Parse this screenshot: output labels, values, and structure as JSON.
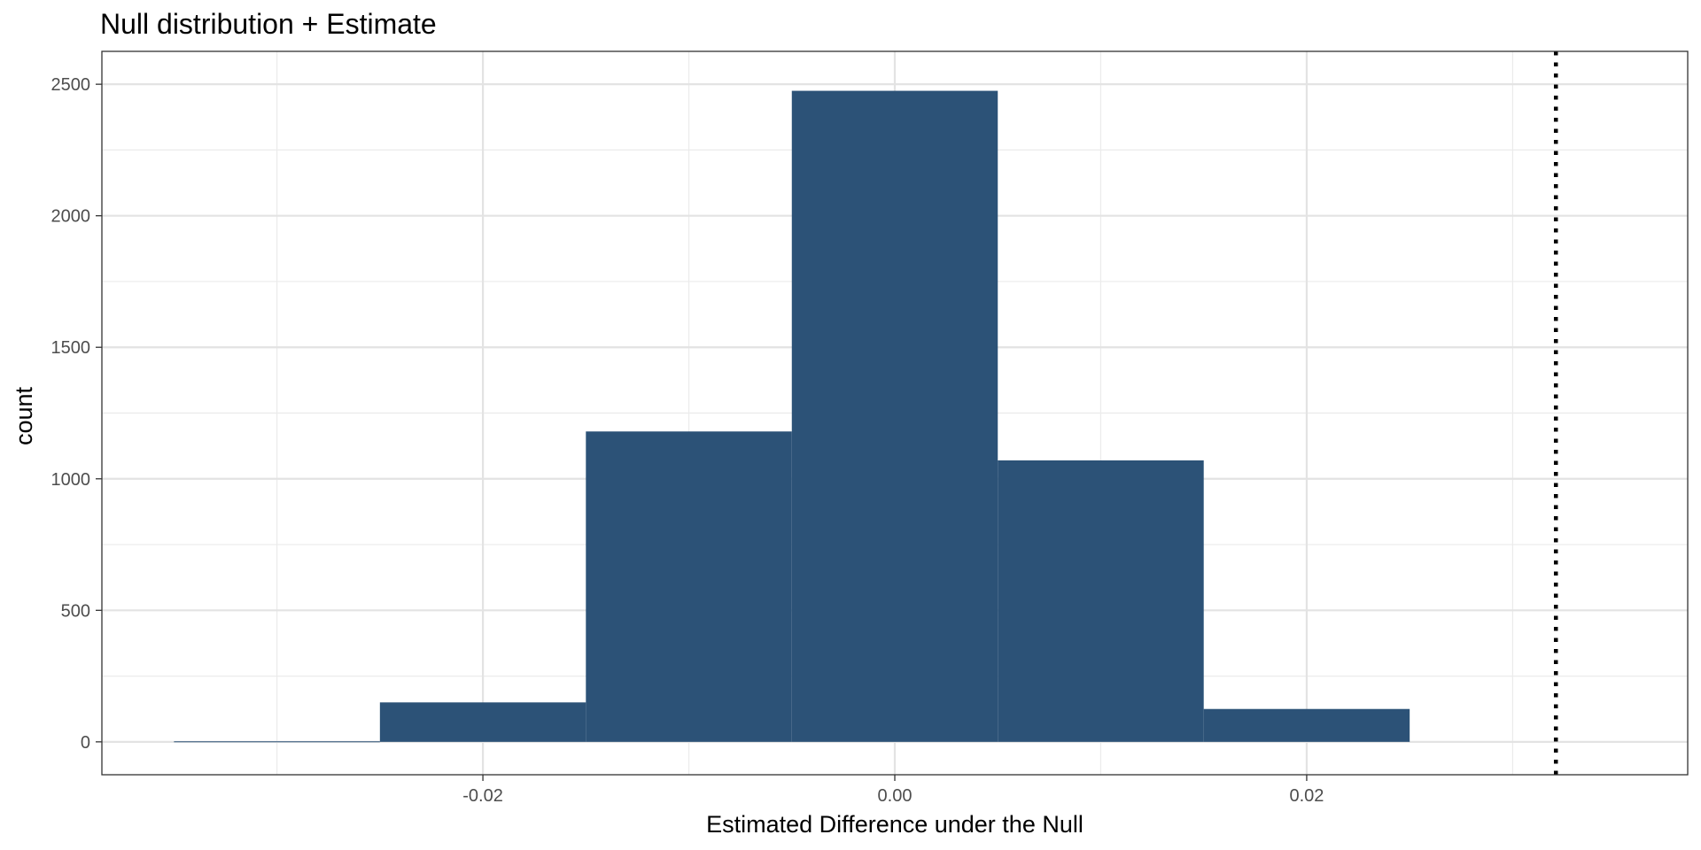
{
  "chart_data": {
    "type": "bar",
    "title": "Null distribution + Estimate",
    "xlabel": "Estimated Difference under the Null",
    "ylabel": "count",
    "xlim": [
      -0.0385,
      0.0385
    ],
    "ylim": [
      -125,
      2625
    ],
    "xticks": [
      {
        "value": -0.02,
        "label": "-0.02"
      },
      {
        "value": 0.0,
        "label": "0.00"
      },
      {
        "value": 0.02,
        "label": "0.02"
      }
    ],
    "yticks": [
      {
        "value": 0,
        "label": "0"
      },
      {
        "value": 500,
        "label": "500"
      },
      {
        "value": 1000,
        "label": "1000"
      },
      {
        "value": 1500,
        "label": "1500"
      },
      {
        "value": 2000,
        "label": "2000"
      },
      {
        "value": 2500,
        "label": "2500"
      }
    ],
    "x_minor_grid": [
      -0.03,
      -0.01,
      0.01,
      0.03
    ],
    "y_minor_grid": [
      250,
      750,
      1250,
      1750,
      2250
    ],
    "bins": [
      {
        "x0": -0.035,
        "x1": -0.025,
        "count": 2
      },
      {
        "x0": -0.025,
        "x1": -0.015,
        "count": 150
      },
      {
        "x0": -0.015,
        "x1": -0.005,
        "count": 1180
      },
      {
        "x0": -0.005,
        "x1": 0.005,
        "count": 2475
      },
      {
        "x0": 0.005,
        "x1": 0.015,
        "count": 1070
      },
      {
        "x0": 0.015,
        "x1": 0.025,
        "count": 125
      }
    ],
    "estimate_line": {
      "x": 0.0321,
      "style": "dotted"
    },
    "bar_color": "#2c5277",
    "grid": true
  }
}
